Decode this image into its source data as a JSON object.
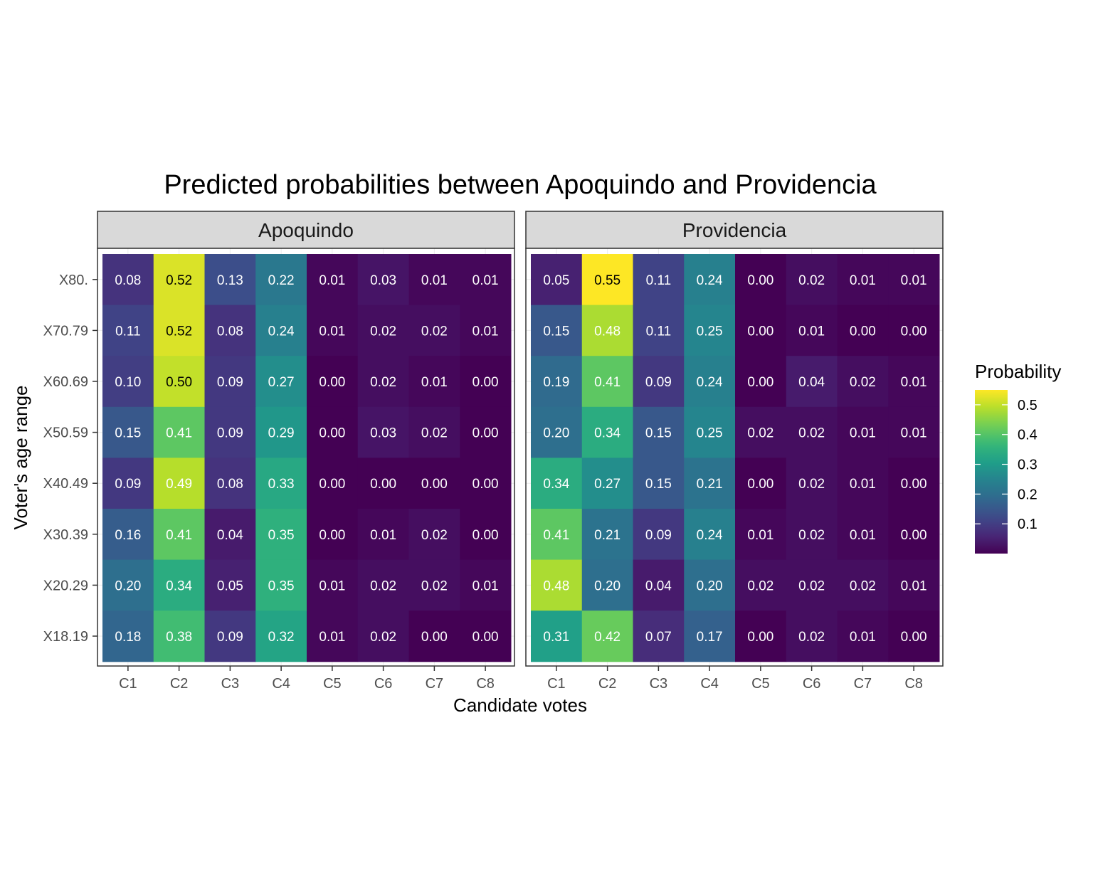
{
  "chart_data": {
    "type": "heatmap",
    "title": "Predicted probabilities between Apoquindo and Providencia",
    "xlabel": "Candidate votes",
    "ylabel": "Voter's age range",
    "x_categories": [
      "C1",
      "C2",
      "C3",
      "C4",
      "C5",
      "C6",
      "C7",
      "C8"
    ],
    "y_categories": [
      "X80.",
      "X70.79",
      "X60.69",
      "X50.59",
      "X40.49",
      "X30.39",
      "X20.29",
      "X18.19"
    ],
    "color_scale": {
      "name": "viridis",
      "range": [
        0,
        0.55
      ],
      "stops": [
        "#440154",
        "#482878",
        "#3e4a89",
        "#31688e",
        "#26828e",
        "#1f9e89",
        "#35b779",
        "#6ece58",
        "#b5de2b",
        "#fde725"
      ]
    },
    "legend": {
      "title": "Probability",
      "ticks": [
        0.1,
        0.2,
        0.3,
        0.4,
        0.5
      ],
      "tick_labels": [
        "0.1",
        "0.2",
        "0.3",
        "0.4",
        "0.5"
      ],
      "placement": "right"
    },
    "panels": [
      {
        "name": "Apoquindo",
        "values": [
          [
            0.08,
            0.52,
            0.13,
            0.22,
            0.01,
            0.03,
            0.01,
            0.01
          ],
          [
            0.11,
            0.52,
            0.08,
            0.24,
            0.01,
            0.02,
            0.02,
            0.01
          ],
          [
            0.1,
            0.5,
            0.09,
            0.27,
            0.0,
            0.02,
            0.01,
            0.0
          ],
          [
            0.15,
            0.41,
            0.09,
            0.29,
            0.0,
            0.03,
            0.02,
            0.0
          ],
          [
            0.09,
            0.49,
            0.08,
            0.33,
            0.0,
            0.0,
            0.0,
            0.0
          ],
          [
            0.16,
            0.41,
            0.04,
            0.35,
            0.0,
            0.01,
            0.02,
            0.0
          ],
          [
            0.2,
            0.34,
            0.05,
            0.35,
            0.01,
            0.02,
            0.02,
            0.01
          ],
          [
            0.18,
            0.38,
            0.09,
            0.32,
            0.01,
            0.02,
            0.0,
            0.0
          ]
        ]
      },
      {
        "name": "Providencia",
        "values": [
          [
            0.05,
            0.55,
            0.11,
            0.24,
            0.0,
            0.02,
            0.01,
            0.01
          ],
          [
            0.15,
            0.48,
            0.11,
            0.25,
            0.0,
            0.01,
            0.0,
            0.0
          ],
          [
            0.19,
            0.41,
            0.09,
            0.24,
            0.0,
            0.04,
            0.02,
            0.01
          ],
          [
            0.2,
            0.34,
            0.15,
            0.25,
            0.02,
            0.02,
            0.01,
            0.01
          ],
          [
            0.34,
            0.27,
            0.15,
            0.21,
            0.0,
            0.02,
            0.01,
            0.0
          ],
          [
            0.41,
            0.21,
            0.09,
            0.24,
            0.01,
            0.02,
            0.01,
            0.0
          ],
          [
            0.48,
            0.2,
            0.04,
            0.2,
            0.02,
            0.02,
            0.02,
            0.01
          ],
          [
            0.31,
            0.42,
            0.07,
            0.17,
            0.0,
            0.02,
            0.01,
            0.0
          ]
        ]
      }
    ],
    "grid": true
  }
}
